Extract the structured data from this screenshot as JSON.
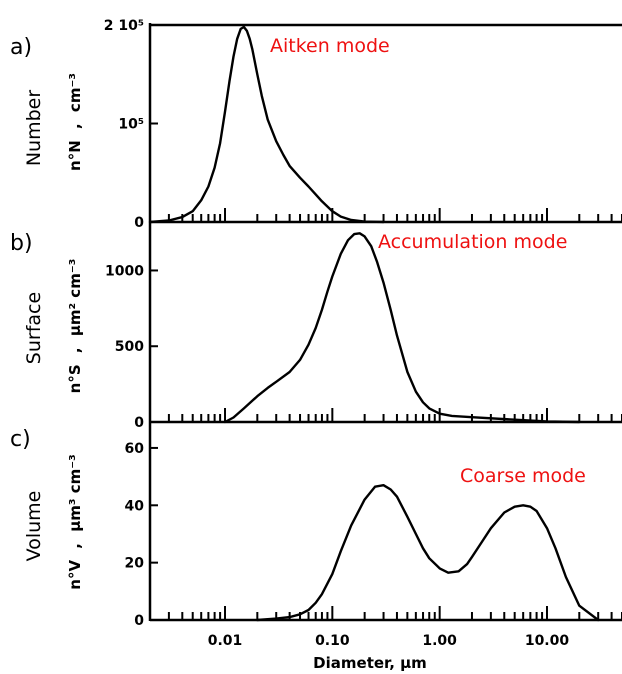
{
  "colors": {
    "annotation": "#ee1111",
    "curve": "#000000"
  },
  "chart_data": [
    {
      "type": "line",
      "panel": "a)",
      "side_label": "Number",
      "ylabel_parts": [
        "n°N",
        ",",
        "cm⁻³"
      ],
      "annotation": "Aitken mode",
      "xscale": "log",
      "xlim": [
        0.002,
        50
      ],
      "ylim": [
        0,
        200000
      ],
      "yticks": [
        0,
        100000,
        200000
      ],
      "yticklabels": [
        "0",
        "10⁵",
        "2 10⁵"
      ],
      "x": [
        0.002,
        0.003,
        0.004,
        0.005,
        0.006,
        0.007,
        0.008,
        0.009,
        0.01,
        0.011,
        0.012,
        0.013,
        0.014,
        0.015,
        0.016,
        0.017,
        0.018,
        0.02,
        0.022,
        0.025,
        0.03,
        0.035,
        0.04,
        0.05,
        0.06,
        0.07,
        0.08,
        0.1,
        0.12,
        0.15,
        0.2,
        0.3
      ],
      "y": [
        0,
        1500,
        5000,
        11000,
        22000,
        36000,
        55000,
        80000,
        112000,
        143000,
        168000,
        186000,
        196000,
        198000,
        194000,
        186000,
        175000,
        150000,
        128000,
        104000,
        82000,
        68000,
        57000,
        45000,
        36000,
        28000,
        21000,
        11000,
        5500,
        2000,
        400,
        0
      ]
    },
    {
      "type": "line",
      "panel": "b)",
      "side_label": "Surface",
      "ylabel_parts": [
        "n°S",
        ",",
        "μm² cm⁻³"
      ],
      "annotation": "Accumulation mode",
      "xscale": "log",
      "xlim": [
        0.002,
        50
      ],
      "ylim": [
        0,
        1300
      ],
      "yticks": [
        0,
        500,
        1000
      ],
      "yticklabels": [
        "0",
        "500",
        "1000"
      ],
      "x": [
        0.01,
        0.012,
        0.015,
        0.02,
        0.025,
        0.03,
        0.04,
        0.05,
        0.06,
        0.07,
        0.08,
        0.09,
        0.1,
        0.12,
        0.14,
        0.16,
        0.18,
        0.2,
        0.23,
        0.26,
        0.3,
        0.35,
        0.4,
        0.5,
        0.6,
        0.7,
        0.8,
        1.0,
        1.3,
        2.0,
        5.0,
        10.0,
        20.0
      ],
      "y": [
        0,
        30,
        90,
        170,
        225,
        265,
        330,
        410,
        510,
        620,
        740,
        860,
        960,
        1110,
        1200,
        1240,
        1245,
        1225,
        1160,
        1060,
        920,
        740,
        570,
        330,
        200,
        130,
        90,
        55,
        40,
        32,
        15,
        4,
        0
      ]
    },
    {
      "type": "line",
      "panel": "c)",
      "side_label": "Volume",
      "ylabel_parts": [
        "n°V",
        ",",
        "μm³ cm⁻³"
      ],
      "annotation": "Coarse mode",
      "xscale": "log",
      "xlim": [
        0.002,
        50
      ],
      "ylim": [
        0,
        68
      ],
      "yticks": [
        0,
        20,
        40,
        60
      ],
      "yticklabels": [
        "0",
        "20",
        "40",
        "60"
      ],
      "x": [
        0.02,
        0.03,
        0.04,
        0.05,
        0.06,
        0.07,
        0.08,
        0.1,
        0.12,
        0.15,
        0.2,
        0.25,
        0.3,
        0.35,
        0.4,
        0.5,
        0.6,
        0.7,
        0.8,
        1.0,
        1.2,
        1.5,
        1.8,
        2.0,
        2.5,
        3.0,
        4.0,
        5.0,
        6.0,
        7.0,
        8.0,
        10.0,
        12.0,
        15.0,
        20.0,
        30.0
      ],
      "y": [
        0,
        0.5,
        1,
        2,
        3.5,
        6,
        9,
        16,
        24,
        33,
        42,
        46.5,
        47,
        45.5,
        43,
        36,
        30,
        25,
        21.5,
        18,
        16.5,
        17,
        19.5,
        22,
        27.5,
        32,
        37.5,
        39.5,
        40,
        39.5,
        38,
        32,
        25,
        15,
        5,
        0
      ]
    }
  ],
  "xaxis": {
    "xlabel": "Diameter, μm",
    "ticks": [
      0.01,
      0.1,
      1,
      10
    ],
    "ticklabels": [
      "0.01",
      "0.10",
      "1.00",
      "10.00"
    ]
  }
}
